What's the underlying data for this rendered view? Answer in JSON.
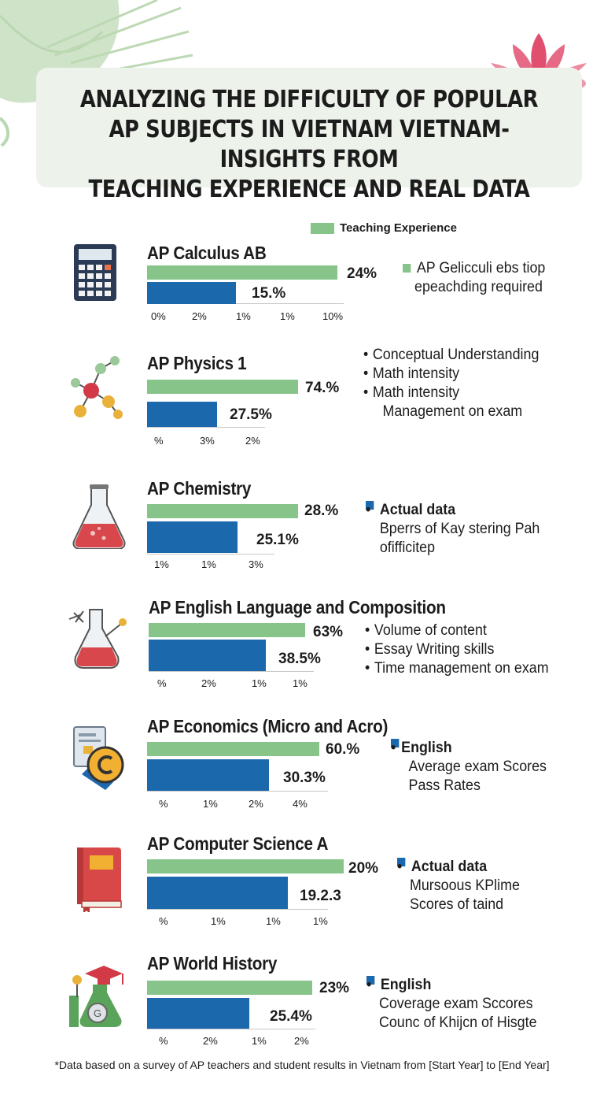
{
  "title": {
    "line1": "ANALYZING THE DIFFICULTY OF POPULAR",
    "line2": "AP SUBJECTS IN VIETNAM VIETNAM-INSIGHTS FROM",
    "line3": "TEACHING EXPERIENCE AND REAL DATA"
  },
  "legend": {
    "teaching": "Teaching Experience"
  },
  "footnote": "*Data based on a survey of AP teachers and student results in Vietnam from [Start Year] to [End Year]",
  "colors": {
    "teaching": "#86c48a",
    "actual": "#1c68ad",
    "lotus": "#e0506e",
    "leaf": "#b9d7b0"
  },
  "chart_data": [
    {
      "type": "bar",
      "title": "AP Calculus AB",
      "series": [
        {
          "name": "Teaching Experience",
          "label": "24%",
          "value": 24
        },
        {
          "label": "15.%",
          "value": 15
        }
      ],
      "tick_labels": [
        "0%",
        "2%",
        "1%",
        "1%",
        "10%"
      ],
      "notes": {
        "head": "AP Gelicculi ebs tiop",
        "lines": [
          "epeachding required"
        ]
      }
    },
    {
      "type": "bar",
      "title": "AP Physics 1",
      "series": [
        {
          "label": "74.%",
          "value": 74
        },
        {
          "label": "27.5%",
          "value": 27.5
        }
      ],
      "tick_labels": [
        "%",
        "3%",
        "2%"
      ],
      "notes": {
        "bullets": [
          "Conceptual Understanding",
          "Math intensity",
          "Math intensity",
          "Management on exam"
        ]
      }
    },
    {
      "type": "bar",
      "title": "AP Chemistry",
      "series": [
        {
          "label": "28.%",
          "value": 28
        },
        {
          "label": "25.1%",
          "value": 25.1
        }
      ],
      "tick_labels": [
        "1%",
        "1%",
        "3%"
      ],
      "notes": {
        "head": "Actual data",
        "lines": [
          "Bperrs of Kay stering Pah",
          "ofifficitep"
        ]
      }
    },
    {
      "type": "bar",
      "title": "AP English Language and Composition",
      "series": [
        {
          "label": "63%",
          "value": 63
        },
        {
          "label": "38.5%",
          "value": 38.5
        }
      ],
      "tick_labels": [
        "%",
        "2%",
        "1%",
        "1%"
      ],
      "notes": {
        "bullets": [
          "Volume of content",
          "Essay Writing skills",
          "Time management on exam"
        ]
      }
    },
    {
      "type": "bar",
      "title": "AP Economics (Micro and Acro)",
      "series": [
        {
          "label": "60.%",
          "value": 60
        },
        {
          "label": "30.3%",
          "value": 30.3
        }
      ],
      "tick_labels": [
        "%",
        "1%",
        "2%",
        "4%"
      ],
      "notes": {
        "head": "English",
        "lines": [
          "Average exam Scores",
          "Pass Rates"
        ]
      }
    },
    {
      "type": "bar",
      "title": "AP Computer Science A",
      "series": [
        {
          "label": "20%",
          "value": 20
        },
        {
          "label": "19.2.3",
          "value": 19.2
        }
      ],
      "tick_labels": [
        "%",
        "1%",
        "1%",
        "1%"
      ],
      "notes": {
        "head": "Actual data",
        "lines": [
          "Mursoous KPlime",
          "Scores of taind"
        ]
      }
    },
    {
      "type": "bar",
      "title": "AP World History",
      "series": [
        {
          "label": "23%",
          "value": 23
        },
        {
          "label": "25.4%",
          "value": 25.4
        }
      ],
      "tick_labels": [
        "%",
        "2%",
        "1%",
        "2%"
      ],
      "notes": {
        "head": "English",
        "lines": [
          "Coverage exam Sccores",
          "Counc of Khijcn of Hisgte"
        ]
      }
    }
  ]
}
